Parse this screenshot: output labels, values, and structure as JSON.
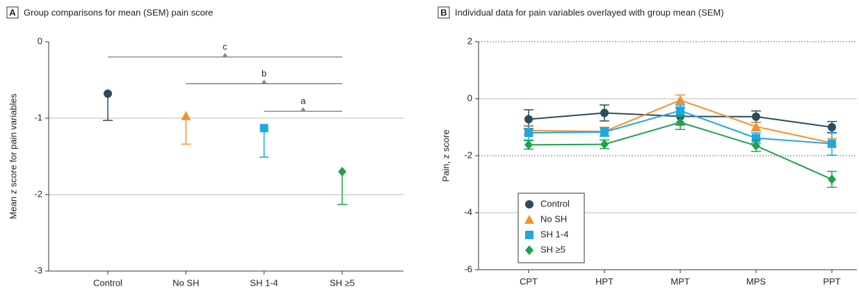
{
  "chart_data": [
    {
      "type": "errorbar",
      "panel": "A",
      "title": "Group comparisons for mean (SEM) pain score",
      "y_label": "Mean z score for pain variables",
      "categories": [
        "Control",
        "No SH",
        "SH 1-4",
        "SH ≥5"
      ],
      "values": [
        -0.68,
        -0.97,
        -1.13,
        -1.7
      ],
      "errors": [
        0.35,
        0.37,
        0.38,
        0.43
      ],
      "colors": [
        "#2f4b5b",
        "#f4902a",
        "#1ea8e0",
        "#1fa24c"
      ],
      "markers": [
        "circle",
        "triangle",
        "square",
        "diamond"
      ],
      "ylim": [
        -3,
        0
      ],
      "yticks": [
        0,
        -1,
        -2,
        -3
      ],
      "grid": true,
      "brackets": [
        {
          "label": "c",
          "span": [
            "Control",
            "SH ≥5"
          ],
          "y": -0.2
        },
        {
          "label": "b",
          "span": [
            "No SH",
            "SH ≥5"
          ],
          "y": -0.55
        },
        {
          "label": "a",
          "span": [
            "SH 1-4",
            "SH ≥5"
          ],
          "y": -0.91
        }
      ]
    },
    {
      "type": "line",
      "panel": "B",
      "title": "Individual data for pain variables overlayed with group mean (SEM)",
      "y_label": "Pain, z score",
      "categories": [
        "CPT",
        "HPT",
        "MPT",
        "MPS",
        "PPT"
      ],
      "series": [
        {
          "name": "Control",
          "color": "#2f4b5b",
          "marker": "circle",
          "values": [
            -0.72,
            -0.5,
            -0.62,
            -0.63,
            -1.0
          ],
          "errors": [
            0.33,
            0.28,
            0.3,
            0.2,
            0.2
          ]
        },
        {
          "name": "No SH",
          "color": "#f4902a",
          "marker": "triangle",
          "values": [
            -1.12,
            -1.15,
            -0.05,
            -0.98,
            -1.55
          ],
          "errors": [
            0.15,
            0.15,
            0.18,
            0.15,
            0.15
          ]
        },
        {
          "name": "SH 1-4",
          "color": "#1ea8e0",
          "marker": "square",
          "values": [
            -1.2,
            -1.17,
            -0.42,
            -1.38,
            -1.58
          ],
          "errors": [
            0.25,
            0.15,
            0.2,
            0.18,
            0.4
          ]
        },
        {
          "name": "SH ≥5",
          "color": "#1fa24c",
          "marker": "diamond",
          "values": [
            -1.62,
            -1.6,
            -0.83,
            -1.65,
            -2.83
          ],
          "errors": [
            0.15,
            0.15,
            0.25,
            0.2,
            0.28
          ]
        }
      ],
      "ylim": [
        -6,
        2
      ],
      "yticks": [
        2,
        0,
        -2,
        -4,
        -6
      ],
      "grid": true,
      "reference_lines": [
        2,
        -2
      ],
      "legend": "lower left"
    }
  ]
}
